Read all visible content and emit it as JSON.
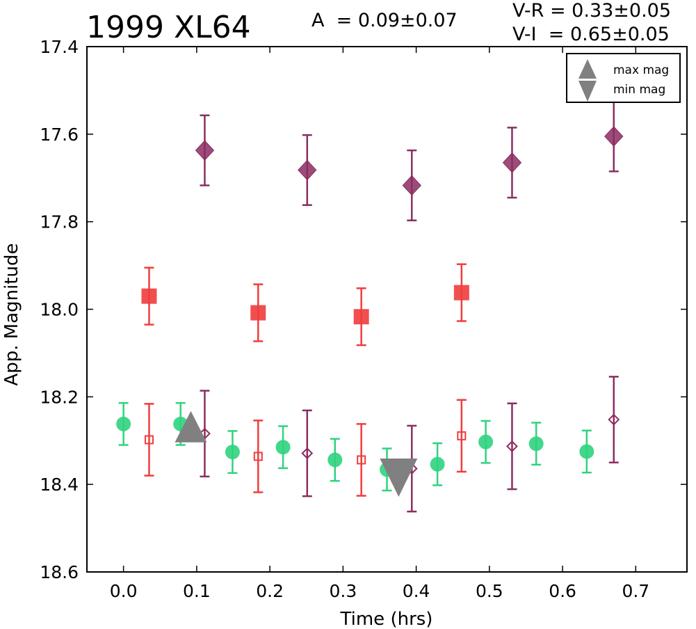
{
  "header": {
    "title": "1999 XL64",
    "amplitude": "A  = 0.09±0.07",
    "color_vr": "V-R = 0.33±0.05",
    "color_vi": "V-I  = 0.65±0.05"
  },
  "chart_data": {
    "type": "scatter",
    "xlabel": "Time (hrs)",
    "ylabel": "App. Magnitude",
    "xlim": [
      -0.05,
      0.77
    ],
    "ylim": [
      18.6,
      17.4
    ],
    "y_inverted": true,
    "xticks": [
      0.0,
      0.1,
      0.2,
      0.3,
      0.4,
      0.5,
      0.6,
      0.7
    ],
    "xtick_labels": [
      "0.0",
      "0.1",
      "0.2",
      "0.3",
      "0.4",
      "0.5",
      "0.6",
      "0.7"
    ],
    "yticks": [
      17.4,
      17.6,
      17.8,
      18.0,
      18.2,
      18.4,
      18.6
    ],
    "ytick_labels": [
      "17.4",
      "17.6",
      "17.8",
      "18.0",
      "18.2",
      "18.4",
      "18.6"
    ],
    "grid": false,
    "legend_position": "top-right",
    "legend": [
      {
        "label": "max mag",
        "marker": "triangle-up",
        "color": "#808080"
      },
      {
        "label": "min mag",
        "marker": "triangle-down",
        "color": "#808080"
      }
    ],
    "series": [
      {
        "marker": "diamond-filled",
        "color": "#8b2d62",
        "x": [
          0.111,
          0.251,
          0.394,
          0.531,
          0.67
        ],
        "y": [
          17.637,
          17.682,
          17.717,
          17.665,
          17.605
        ],
        "err": [
          0.08,
          0.08,
          0.08,
          0.08,
          0.08
        ]
      },
      {
        "marker": "square-filled",
        "color": "#f03c3c",
        "x": [
          0.035,
          0.184,
          0.325,
          0.462
        ],
        "y": [
          17.97,
          18.008,
          18.017,
          17.962
        ],
        "err": [
          0.065,
          0.065,
          0.065,
          0.065
        ]
      },
      {
        "marker": "circle-filled",
        "color": "#2fd37e",
        "x": [
          0.0,
          0.078,
          0.149,
          0.218,
          0.289,
          0.36,
          0.429,
          0.495,
          0.564,
          0.633
        ],
        "y": [
          18.262,
          18.262,
          18.326,
          18.315,
          18.344,
          18.366,
          18.354,
          18.303,
          18.307,
          18.325
        ],
        "err": [
          0.048,
          0.048,
          0.048,
          0.048,
          0.048,
          0.048,
          0.048,
          0.048,
          0.048,
          0.048
        ]
      },
      {
        "marker": "square-open",
        "color": "#f03c3c",
        "x": [
          0.035,
          0.184,
          0.325,
          0.462
        ],
        "y": [
          18.298,
          18.336,
          18.344,
          18.289
        ],
        "err": [
          0.082,
          0.082,
          0.082,
          0.082
        ]
      },
      {
        "marker": "diamond-open",
        "color": "#8b2d62",
        "x": [
          0.111,
          0.251,
          0.394,
          0.531,
          0.67
        ],
        "y": [
          18.284,
          18.329,
          18.364,
          18.313,
          18.252
        ],
        "err": [
          0.098,
          0.098,
          0.098,
          0.098,
          0.098
        ]
      },
      {
        "marker": "triangle-up",
        "color": "#808080",
        "legend_label": "max mag",
        "x": [
          0.092
        ],
        "y": [
          18.277
        ],
        "err": [
          0
        ]
      },
      {
        "marker": "triangle-down",
        "color": "#808080",
        "legend_label": "min mag",
        "x": [
          0.376
        ],
        "y": [
          18.368
        ],
        "err": [
          0
        ]
      }
    ]
  }
}
